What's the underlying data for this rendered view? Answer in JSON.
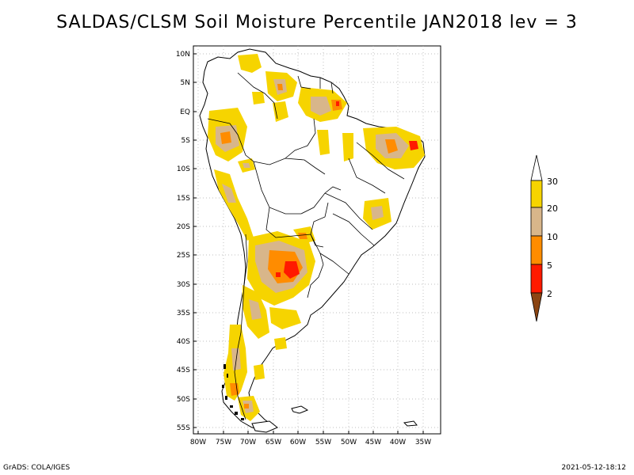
{
  "title": "SALDAS/CLSM Soil Moisture Percentile JAN2018 lev = 3",
  "footer": {
    "left": "GrADS: COLA/IGES",
    "right": "2021-05-12-18:12"
  },
  "map": {
    "lon_range": [
      -80,
      -33
    ],
    "lat_range": [
      -56,
      12
    ],
    "lat_ticks": [
      "10N",
      "5N",
      "EQ",
      "5S",
      "10S",
      "15S",
      "20S",
      "25S",
      "30S",
      "35S",
      "40S",
      "45S",
      "50S",
      "55S"
    ],
    "lon_ticks": [
      "80W",
      "75W",
      "70W",
      "65W",
      "60W",
      "55W",
      "50W",
      "45W",
      "40W",
      "35W"
    ]
  },
  "legend": {
    "labels": [
      "30",
      "20",
      "10",
      "5",
      "2"
    ],
    "colors": {
      "above_30": "#ffffff",
      "20_30": "#f6d400",
      "10_20": "#d8b68a",
      "5_10": "#ff8c00",
      "2_5": "#ff1a00",
      "below_2": "#8b4513"
    }
  }
}
